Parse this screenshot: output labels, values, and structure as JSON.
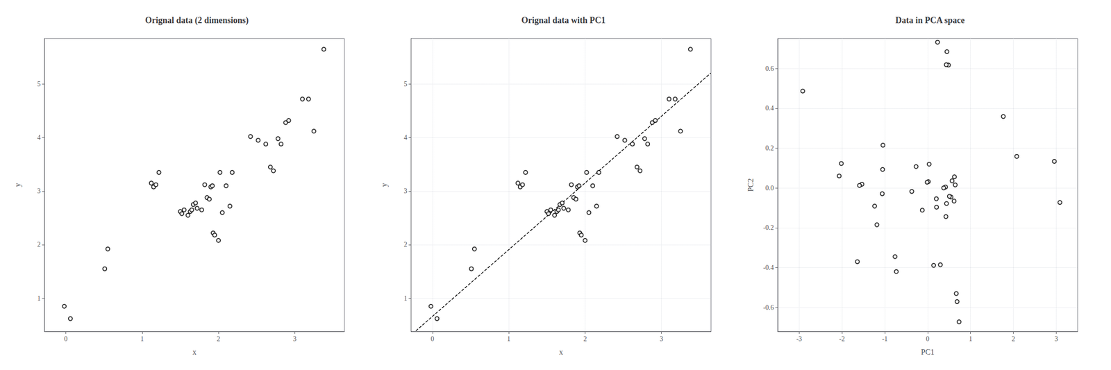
{
  "chart_data": [
    {
      "type": "scatter",
      "title": "Orignal data (2 dimensions)",
      "xlabel": "x",
      "ylabel": "y",
      "x": [
        -0.02,
        0.06,
        0.51,
        0.55,
        1.12,
        1.15,
        1.18,
        1.22,
        1.5,
        1.52,
        1.55,
        1.6,
        1.63,
        1.65,
        1.67,
        1.7,
        1.72,
        1.78,
        1.82,
        1.85,
        1.88,
        1.9,
        1.92,
        1.93,
        1.95,
        2.0,
        2.02,
        2.05,
        2.1,
        2.15,
        2.18,
        2.42,
        2.52,
        2.62,
        2.68,
        2.72,
        2.78,
        2.82,
        2.88,
        2.92,
        3.1,
        3.18,
        3.25,
        3.38
      ],
      "values": [
        0.85,
        0.62,
        1.55,
        1.92,
        3.15,
        3.08,
        3.12,
        3.35,
        2.62,
        2.58,
        2.65,
        2.55,
        2.62,
        2.65,
        2.75,
        2.78,
        2.68,
        2.65,
        3.12,
        2.88,
        2.85,
        3.08,
        3.1,
        2.22,
        2.18,
        2.08,
        3.35,
        2.6,
        3.1,
        2.72,
        3.35,
        4.02,
        3.95,
        3.88,
        3.45,
        3.38,
        3.98,
        3.88,
        4.28,
        4.32,
        4.72,
        4.72,
        4.12,
        5.65
      ],
      "color": "#000000",
      "marker": "circle",
      "xlim": [
        -0.28,
        3.65
      ],
      "ylim": [
        0.38,
        5.85
      ],
      "xticks": [
        0,
        1,
        2,
        3
      ],
      "yticks": [
        1,
        2,
        3,
        4,
        5
      ],
      "grid": false
    },
    {
      "type": "scatter",
      "title": "Orignal data with PC1",
      "xlabel": "x",
      "ylabel": "y",
      "series": [
        {
          "type": "scatter",
          "x": [
            -0.02,
            0.06,
            0.51,
            0.55,
            1.12,
            1.15,
            1.18,
            1.22,
            1.5,
            1.52,
            1.55,
            1.6,
            1.63,
            1.65,
            1.67,
            1.7,
            1.72,
            1.78,
            1.82,
            1.85,
            1.88,
            1.9,
            1.92,
            1.93,
            1.95,
            2.0,
            2.02,
            2.05,
            2.1,
            2.15,
            2.18,
            2.42,
            2.52,
            2.62,
            2.68,
            2.72,
            2.78,
            2.82,
            2.88,
            2.92,
            3.1,
            3.18,
            3.25,
            3.38
          ],
          "values": [
            0.85,
            0.62,
            1.55,
            1.92,
            3.15,
            3.08,
            3.12,
            3.35,
            2.62,
            2.58,
            2.65,
            2.55,
            2.62,
            2.65,
            2.75,
            2.78,
            2.68,
            2.65,
            3.12,
            2.88,
            2.85,
            3.08,
            3.1,
            2.22,
            2.18,
            2.08,
            3.35,
            2.6,
            3.1,
            2.72,
            3.35,
            4.02,
            3.95,
            3.88,
            3.45,
            3.38,
            3.98,
            3.88,
            4.28,
            4.32,
            4.72,
            4.72,
            4.12,
            5.65
          ],
          "color": "#000000",
          "marker": "circle"
        },
        {
          "type": "line",
          "x": [
            -0.2169,
            3.6465
          ],
          "values": [
            0.3912,
            5.205
          ],
          "color": "#000000",
          "line_style": "dashed"
        }
      ],
      "xlim": [
        -0.28,
        3.65
      ],
      "ylim": [
        0.38,
        5.85
      ],
      "xticks": [
        0,
        1,
        2,
        3
      ],
      "yticks": [
        1,
        2,
        3,
        4,
        5
      ],
      "grid": true
    },
    {
      "type": "scatter",
      "title": "Data in PCA space",
      "xlabel": "PC1",
      "ylabel": "PC2",
      "x": [
        2.9558,
        3.0851,
        2.0782,
        1.7646,
        0.4485,
        0.4844,
        0.4344,
        0.23,
        0.624,
        0.6427,
        0.5693,
        0.616,
        0.5427,
        0.5068,
        0.4162,
        0.3741,
        0.4395,
        0.4254,
        0.0338,
        0.2022,
        0.2068,
        0.0149,
        -0.0132,
        0.6669,
        0.6855,
        0.7322,
        -0.2708,
        0.2954,
        -0.1259,
        0.1392,
        -0.3709,
        -1.0437,
        -1.0517,
        -1.0597,
        -0.7619,
        -0.7323,
        -1.2378,
        -1.1848,
        -1.5343,
        -1.5906,
        -2.0152,
        -2.0653,
        -1.6411,
        -2.9158
      ],
      "values": [
        0.1336,
        -0.0727,
        0.1584,
        0.3588,
        0.6842,
        0.6169,
        0.6186,
        0.7314,
        0.0561,
        0.0154,
        0.0358,
        -0.0657,
        -0.0453,
        -0.0421,
        0.0049,
        0.0002,
        -0.078,
        -0.1435,
        0.1195,
        -0.0542,
        -0.0963,
        0.032,
        0.0289,
        -0.5297,
        -0.5703,
        -0.6719,
        0.1074,
        -0.3854,
        -0.1114,
        -0.3883,
        -0.0173,
        0.2148,
        0.093,
        -0.0288,
        -0.3447,
        -0.4197,
        -0.091,
        -0.1847,
        0.0188,
        0.0127,
        0.1227,
        0.0603,
        -0.3699,
        0.4864
      ],
      "color": "#000000",
      "marker": "circle",
      "xlim": [
        -3.5,
        3.5
      ],
      "ylim": [
        -0.72,
        0.75
      ],
      "xticks": [
        -3,
        -2,
        -1,
        0,
        1,
        2,
        3
      ],
      "yticks": [
        -0.6,
        -0.4,
        -0.2,
        {
          "value": 0.0,
          "label": "0.0"
        },
        0.2,
        0.4,
        0.6
      ],
      "grid": true
    }
  ]
}
